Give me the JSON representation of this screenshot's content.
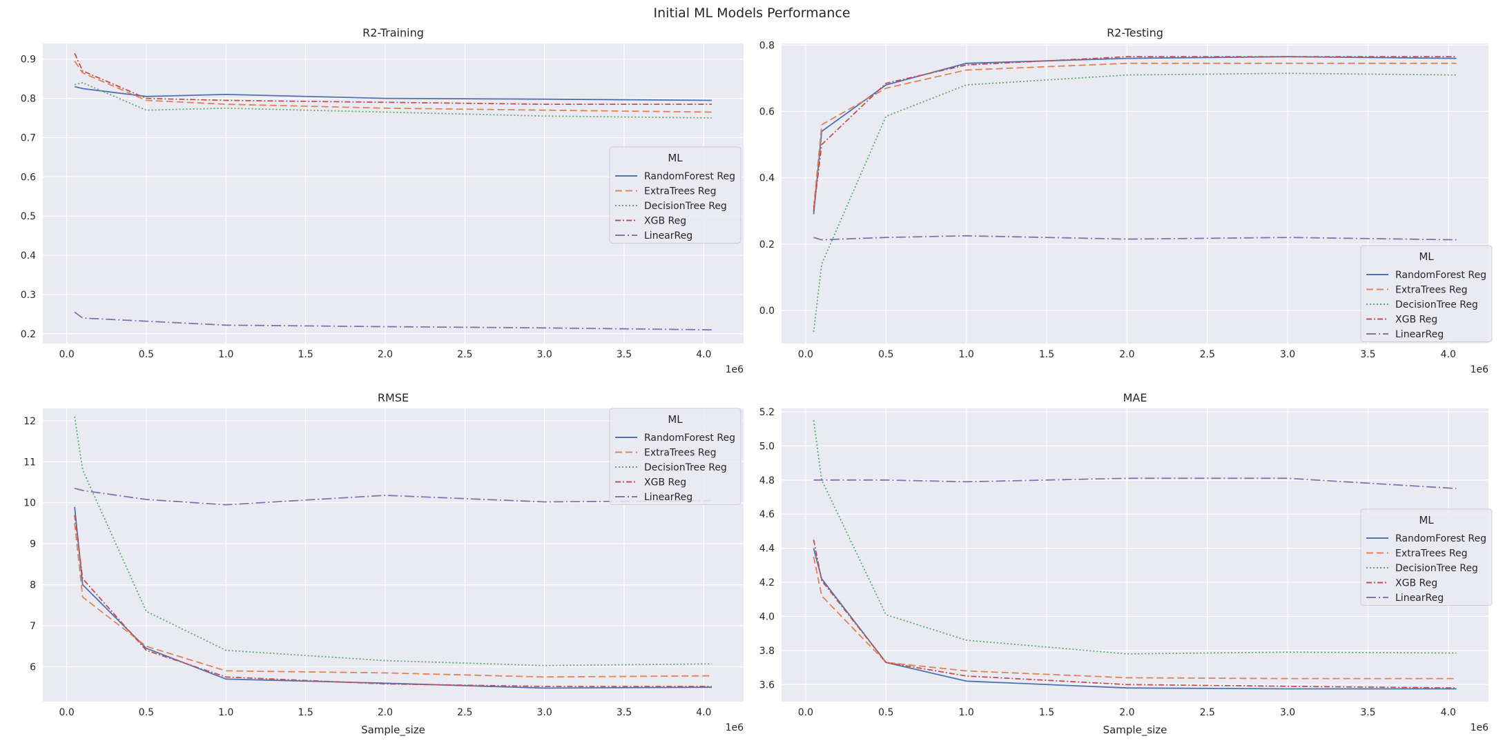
{
  "title": "Initial ML Models Performance",
  "colors": {
    "axes_bg": "#EAEAF2",
    "grid": "#FFFFFF",
    "legend_bg": "#EAEAF2",
    "legend_border": "#CCCCCC"
  },
  "legend_title": "ML",
  "series_styles": [
    {
      "name": "RandomForest Reg",
      "color": "#4C72B0",
      "dash": "solid"
    },
    {
      "name": "ExtraTrees Reg",
      "color": "#DD8452",
      "dash": "dashed"
    },
    {
      "name": "DecisionTree Reg",
      "color": "#55A868",
      "dash": "dotted"
    },
    {
      "name": "XGB Reg",
      "color": "#C44E52",
      "dash": "dashdot"
    },
    {
      "name": "LinearReg",
      "color": "#8172B3",
      "dash": "longdashdot"
    }
  ],
  "chart_data": [
    {
      "type": "line",
      "title": "R2-Training",
      "xlabel": "",
      "x_offset_label": "1e6",
      "xlim": [
        -0.15,
        4.25
      ],
      "ylim": [
        0.175,
        0.94
      ],
      "xticks": [
        "0.0",
        "0.5",
        "1.0",
        "1.5",
        "2.0",
        "2.5",
        "3.0",
        "3.5",
        "4.0"
      ],
      "yticks": [
        "0.2",
        "0.3",
        "0.4",
        "0.5",
        "0.6",
        "0.7",
        "0.8",
        "0.9"
      ],
      "legend_position": "center-right",
      "x": [
        0.05,
        0.1,
        0.5,
        1.0,
        2.0,
        3.0,
        4.05
      ],
      "series": [
        {
          "name": "RandomForest Reg",
          "values": [
            0.83,
            0.825,
            0.805,
            0.81,
            0.8,
            0.798,
            0.795
          ]
        },
        {
          "name": "ExtraTrees Reg",
          "values": [
            0.895,
            0.865,
            0.795,
            0.785,
            0.775,
            0.77,
            0.765
          ]
        },
        {
          "name": "DecisionTree Reg",
          "values": [
            0.835,
            0.84,
            0.77,
            0.775,
            0.765,
            0.755,
            0.75
          ]
        },
        {
          "name": "XGB Reg",
          "values": [
            0.915,
            0.87,
            0.8,
            0.795,
            0.79,
            0.785,
            0.785
          ]
        },
        {
          "name": "LinearReg",
          "values": [
            0.255,
            0.24,
            0.232,
            0.222,
            0.218,
            0.215,
            0.21
          ]
        }
      ]
    },
    {
      "type": "line",
      "title": "R2-Testing",
      "xlabel": "",
      "x_offset_label": "1e6",
      "xlim": [
        -0.15,
        4.25
      ],
      "ylim": [
        -0.1,
        0.805
      ],
      "xticks": [
        "0.0",
        "0.5",
        "1.0",
        "1.5",
        "2.0",
        "2.5",
        "3.0",
        "3.5",
        "4.0"
      ],
      "yticks": [
        "0.0",
        "0.2",
        "0.4",
        "0.6",
        "0.8"
      ],
      "legend_position": "lower-right",
      "x": [
        0.05,
        0.1,
        0.5,
        1.0,
        2.0,
        3.0,
        4.05
      ],
      "series": [
        {
          "name": "RandomForest Reg",
          "values": [
            0.29,
            0.54,
            0.68,
            0.745,
            0.76,
            0.765,
            0.76
          ]
        },
        {
          "name": "ExtraTrees Reg",
          "values": [
            0.31,
            0.56,
            0.67,
            0.725,
            0.745,
            0.745,
            0.745
          ]
        },
        {
          "name": "DecisionTree Reg",
          "values": [
            -0.065,
            0.14,
            0.585,
            0.68,
            0.71,
            0.715,
            0.71
          ]
        },
        {
          "name": "XGB Reg",
          "values": [
            0.3,
            0.5,
            0.685,
            0.74,
            0.765,
            0.765,
            0.765
          ]
        },
        {
          "name": "LinearReg",
          "values": [
            0.22,
            0.213,
            0.22,
            0.225,
            0.215,
            0.22,
            0.213
          ]
        }
      ]
    },
    {
      "type": "line",
      "title": "RMSE",
      "xlabel": "Sample_size",
      "x_offset_label": "1e6",
      "xlim": [
        -0.15,
        4.25
      ],
      "ylim": [
        5.15,
        12.3
      ],
      "xticks": [
        "0.0",
        "0.5",
        "1.0",
        "1.5",
        "2.0",
        "2.5",
        "3.0",
        "3.5",
        "4.0"
      ],
      "yticks": [
        "6",
        "7",
        "8",
        "9",
        "10",
        "11",
        "12"
      ],
      "legend_position": "top-right",
      "x": [
        0.05,
        0.1,
        0.5,
        1.0,
        2.0,
        3.0,
        4.05
      ],
      "series": [
        {
          "name": "RandomForest Reg",
          "values": [
            9.9,
            8.0,
            6.45,
            5.7,
            5.6,
            5.48,
            5.5
          ]
        },
        {
          "name": "ExtraTrees Reg",
          "values": [
            9.5,
            7.7,
            6.5,
            5.9,
            5.85,
            5.75,
            5.78
          ]
        },
        {
          "name": "DecisionTree Reg",
          "values": [
            12.1,
            10.8,
            7.35,
            6.4,
            6.15,
            6.03,
            6.07
          ]
        },
        {
          "name": "XGB Reg",
          "values": [
            9.7,
            8.15,
            6.4,
            5.75,
            5.58,
            5.52,
            5.52
          ]
        },
        {
          "name": "LinearReg",
          "values": [
            10.35,
            10.3,
            10.08,
            9.95,
            10.18,
            10.02,
            10.05
          ]
        }
      ]
    },
    {
      "type": "line",
      "title": "MAE",
      "xlabel": "Sample_size",
      "x_offset_label": "1e6",
      "xlim": [
        -0.15,
        4.25
      ],
      "ylim": [
        3.5,
        5.22
      ],
      "xticks": [
        "0.0",
        "0.5",
        "1.0",
        "1.5",
        "2.0",
        "2.5",
        "3.0",
        "3.5",
        "4.0"
      ],
      "yticks": [
        "3.6",
        "3.8",
        "4.0",
        "4.2",
        "4.4",
        "4.6",
        "4.8",
        "5.0",
        "5.2"
      ],
      "legend_position": "center-right",
      "x": [
        0.05,
        0.1,
        0.5,
        1.0,
        2.0,
        3.0,
        4.05
      ],
      "series": [
        {
          "name": "RandomForest Reg",
          "values": [
            4.4,
            4.22,
            3.73,
            3.62,
            3.58,
            3.575,
            3.575
          ]
        },
        {
          "name": "ExtraTrees Reg",
          "values": [
            4.35,
            4.12,
            3.73,
            3.68,
            3.64,
            3.635,
            3.635
          ]
        },
        {
          "name": "DecisionTree Reg",
          "values": [
            5.15,
            4.8,
            4.01,
            3.86,
            3.78,
            3.79,
            3.785
          ]
        },
        {
          "name": "XGB Reg",
          "values": [
            4.45,
            4.21,
            3.73,
            3.65,
            3.6,
            3.59,
            3.58
          ]
        },
        {
          "name": "LinearReg",
          "values": [
            4.8,
            4.8,
            4.8,
            4.79,
            4.81,
            4.81,
            4.75
          ]
        }
      ]
    }
  ]
}
